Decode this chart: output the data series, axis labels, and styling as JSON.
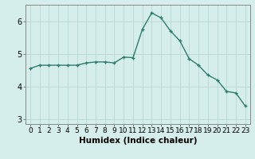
{
  "x": [
    0,
    1,
    2,
    3,
    4,
    5,
    6,
    7,
    8,
    9,
    10,
    11,
    12,
    13,
    14,
    15,
    16,
    17,
    18,
    19,
    20,
    21,
    22,
    23
  ],
  "y": [
    4.55,
    4.65,
    4.65,
    4.65,
    4.65,
    4.65,
    4.72,
    4.75,
    4.75,
    4.72,
    4.9,
    4.88,
    5.75,
    6.25,
    6.1,
    5.7,
    5.4,
    4.85,
    4.65,
    4.35,
    4.2,
    3.85,
    3.8,
    3.4
  ],
  "line_color": "#2e7d6e",
  "marker": "+",
  "marker_size": 3,
  "marker_lw": 1.0,
  "line_width": 1.0,
  "xlabel": "Humidex (Indice chaleur)",
  "xlim": [
    -0.5,
    23.5
  ],
  "ylim": [
    2.85,
    6.5
  ],
  "yticks": [
    3,
    4,
    5,
    6
  ],
  "xtick_labels": [
    "0",
    "1",
    "2",
    "3",
    "4",
    "5",
    "6",
    "7",
    "8",
    "9",
    "10",
    "11",
    "12",
    "13",
    "14",
    "15",
    "16",
    "17",
    "18",
    "19",
    "20",
    "21",
    "22",
    "23"
  ],
  "bg_color": "#d5eeeb",
  "grid_color": "#b8d8d4",
  "font_size": 6.5,
  "xlabel_fontsize": 7.5
}
